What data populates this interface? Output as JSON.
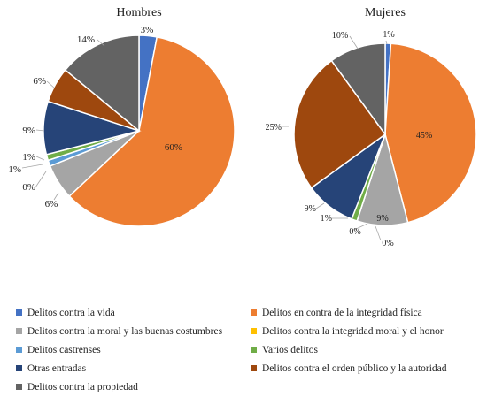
{
  "charts": [
    {
      "title": "Hombres",
      "values": [
        3,
        60,
        6,
        0,
        1,
        1,
        9,
        6,
        14
      ],
      "labels": [
        "3%",
        "60%",
        "6%",
        "0%",
        "1%",
        "1%",
        "9%",
        "6%",
        "14%"
      ]
    },
    {
      "title": "Mujeres",
      "values": [
        1,
        45,
        9,
        0,
        0,
        1,
        9,
        25,
        10
      ],
      "labels": [
        "1%",
        "45%",
        "9%",
        "0%",
        "0%",
        "1%",
        "9%",
        "25%",
        "10%"
      ]
    }
  ],
  "legend": [
    {
      "label": "Delitos contra la vida",
      "color": "#4472c4"
    },
    {
      "label": "Delitos en contra de la integridad física",
      "color": "#ed7d31"
    },
    {
      "label": "Delitos contra la moral y las buenas costumbres",
      "color": "#a5a5a5"
    },
    {
      "label": "Delitos contra la integridad moral y el honor",
      "color": "#ffc000"
    },
    {
      "label": "Delitos castrenses",
      "color": "#5b9bd5"
    },
    {
      "label": "Varios delitos",
      "color": "#70ad47"
    },
    {
      "label": "Otras entradas",
      "color": "#264478"
    },
    {
      "label": "Delitos contra el orden público y la autoridad",
      "color": "#9e480e"
    },
    {
      "label": "Delitos contra la propiedad",
      "color": "#636363"
    }
  ],
  "chart_data": [
    {
      "type": "pie",
      "title": "Hombres",
      "categories": [
        "Delitos contra la vida",
        "Delitos en contra de la integridad física",
        "Delitos contra la moral y las buenas costumbres",
        "Delitos contra la integridad moral y el honor",
        "Delitos castrenses",
        "Varios delitos",
        "Otras entradas",
        "Delitos contra el orden público y la autoridad",
        "Delitos contra la propiedad"
      ],
      "values": [
        3,
        60,
        6,
        0,
        1,
        1,
        9,
        6,
        14
      ],
      "legend": "bottom"
    },
    {
      "type": "pie",
      "title": "Mujeres",
      "categories": [
        "Delitos contra la vida",
        "Delitos en contra de la integridad física",
        "Delitos contra la moral y las buenas costumbres",
        "Delitos contra la integridad moral y el honor",
        "Delitos castrenses",
        "Varios delitos",
        "Otras entradas",
        "Delitos contra el orden público y la autoridad",
        "Delitos contra la propiedad"
      ],
      "values": [
        1,
        45,
        9,
        0,
        0,
        1,
        9,
        25,
        10
      ],
      "legend": "bottom"
    }
  ]
}
